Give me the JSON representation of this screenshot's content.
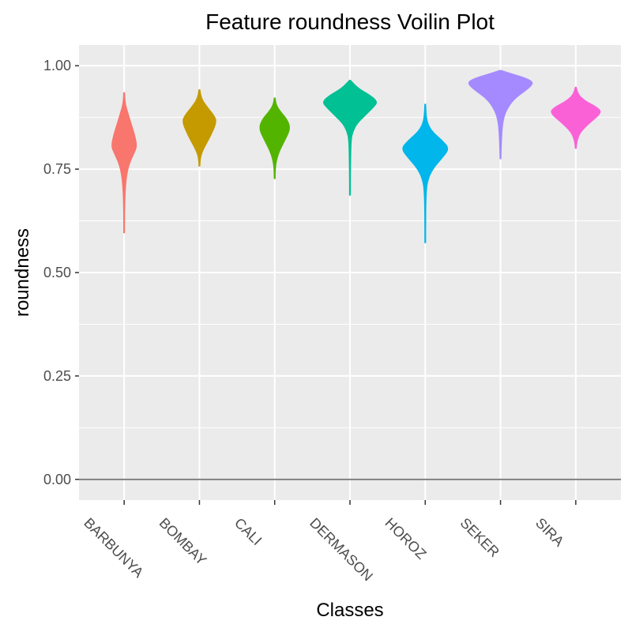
{
  "chart_data": {
    "type": "violin",
    "title": "Feature roundness Voilin Plot",
    "xlabel": "Classes",
    "ylabel": "roundness",
    "ylim": [
      -0.05,
      1.05
    ],
    "yticks": [
      0.0,
      0.25,
      0.5,
      0.75,
      1.0
    ],
    "ytick_labels": [
      "0.00",
      "0.25",
      "0.50",
      "0.75",
      "1.00"
    ],
    "hline": 0.0,
    "grid": true,
    "legend": "none",
    "categories": [
      "BARBUNYA",
      "BOMBAY",
      "CALI",
      "DERMASON",
      "HOROZ",
      "SEKER",
      "SIRA"
    ],
    "series": [
      {
        "category": "BARBUNYA",
        "color": "#F8766D",
        "min": 0.596,
        "max": 0.935,
        "mode": 0.805,
        "median": 0.8,
        "peak_halfwidth": 0.17,
        "shape": [
          [
            0.596,
            0.01
          ],
          [
            0.66,
            0.04
          ],
          [
            0.72,
            0.12
          ],
          [
            0.76,
            0.35
          ],
          [
            0.79,
            0.8
          ],
          [
            0.805,
            1.0
          ],
          [
            0.83,
            0.85
          ],
          [
            0.86,
            0.55
          ],
          [
            0.89,
            0.25
          ],
          [
            0.91,
            0.08
          ],
          [
            0.935,
            0.01
          ]
        ]
      },
      {
        "category": "BOMBAY",
        "color": "#C49A00",
        "min": 0.757,
        "max": 0.942,
        "mode": 0.864,
        "median": 0.865,
        "peak_halfwidth": 0.23,
        "shape": [
          [
            0.757,
            0.01
          ],
          [
            0.78,
            0.06
          ],
          [
            0.8,
            0.25
          ],
          [
            0.83,
            0.65
          ],
          [
            0.864,
            1.0
          ],
          [
            0.88,
            0.85
          ],
          [
            0.9,
            0.45
          ],
          [
            0.92,
            0.12
          ],
          [
            0.942,
            0.01
          ]
        ]
      },
      {
        "category": "CALI",
        "color": "#53B400",
        "min": 0.727,
        "max": 0.922,
        "mode": 0.848,
        "median": 0.845,
        "peak_halfwidth": 0.21,
        "shape": [
          [
            0.727,
            0.01
          ],
          [
            0.76,
            0.05
          ],
          [
            0.79,
            0.25
          ],
          [
            0.82,
            0.65
          ],
          [
            0.848,
            1.0
          ],
          [
            0.87,
            0.8
          ],
          [
            0.89,
            0.35
          ],
          [
            0.905,
            0.1
          ],
          [
            0.922,
            0.01
          ]
        ]
      },
      {
        "category": "DERMASON",
        "color": "#00C094",
        "min": 0.687,
        "max": 0.965,
        "mode": 0.913,
        "median": 0.91,
        "peak_halfwidth": 0.37,
        "shape": [
          [
            0.687,
            0.01
          ],
          [
            0.75,
            0.02
          ],
          [
            0.82,
            0.04
          ],
          [
            0.84,
            0.1
          ],
          [
            0.86,
            0.25
          ],
          [
            0.88,
            0.55
          ],
          [
            0.9,
            0.85
          ],
          [
            0.913,
            1.0
          ],
          [
            0.93,
            0.7
          ],
          [
            0.945,
            0.3
          ],
          [
            0.965,
            0.01
          ]
        ]
      },
      {
        "category": "HOROZ",
        "color": "#00B6EB",
        "min": 0.572,
        "max": 0.907,
        "mode": 0.8,
        "median": 0.795,
        "peak_halfwidth": 0.32,
        "shape": [
          [
            0.572,
            0.01
          ],
          [
            0.62,
            0.02
          ],
          [
            0.68,
            0.03
          ],
          [
            0.72,
            0.08
          ],
          [
            0.75,
            0.3
          ],
          [
            0.78,
            0.75
          ],
          [
            0.8,
            1.0
          ],
          [
            0.82,
            0.7
          ],
          [
            0.84,
            0.3
          ],
          [
            0.86,
            0.1
          ],
          [
            0.88,
            0.04
          ],
          [
            0.907,
            0.01
          ]
        ]
      },
      {
        "category": "SEKER",
        "color": "#A58AFF",
        "min": 0.775,
        "max": 0.989,
        "mode": 0.959,
        "median": 0.955,
        "peak_halfwidth": 0.45,
        "shape": [
          [
            0.775,
            0.01
          ],
          [
            0.82,
            0.03
          ],
          [
            0.86,
            0.06
          ],
          [
            0.89,
            0.15
          ],
          [
            0.92,
            0.4
          ],
          [
            0.94,
            0.75
          ],
          [
            0.959,
            1.0
          ],
          [
            0.97,
            0.75
          ],
          [
            0.98,
            0.35
          ],
          [
            0.989,
            0.01
          ]
        ]
      },
      {
        "category": "SIRA",
        "color": "#FB61D7",
        "min": 0.8,
        "max": 0.948,
        "mode": 0.887,
        "median": 0.885,
        "peak_halfwidth": 0.35,
        "shape": [
          [
            0.8,
            0.01
          ],
          [
            0.82,
            0.05
          ],
          [
            0.84,
            0.18
          ],
          [
            0.86,
            0.5
          ],
          [
            0.887,
            1.0
          ],
          [
            0.9,
            0.8
          ],
          [
            0.915,
            0.35
          ],
          [
            0.93,
            0.1
          ],
          [
            0.948,
            0.01
          ]
        ]
      }
    ]
  }
}
